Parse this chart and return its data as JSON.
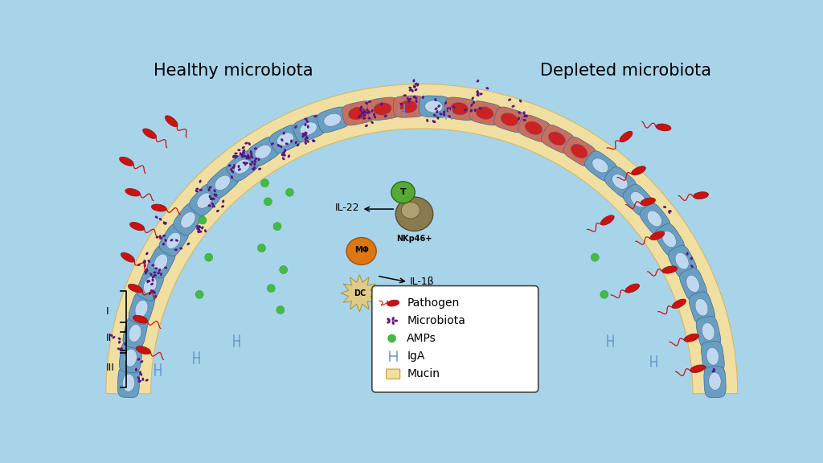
{
  "background_color": "#a8d4ea",
  "title_left": "Healthy microbiota",
  "title_right": "Depleted microbiota",
  "title_fontsize": 15,
  "mucin_color": "#f0dfa0",
  "mucin_edge_color": "#d4b86a",
  "cell_body_color": "#6a9ec0",
  "cell_highlight_color": "#c0d8ee",
  "cell_edge_color": "#3a6a9a",
  "pathogen_color": "#cc1111",
  "pathogen_edge": "#881111",
  "microbiota_color": "#5a1580",
  "amps_color": "#44bb44",
  "iga_color": "#6699cc",
  "label_I": "I",
  "label_II": "II",
  "label_III": "III",
  "legend_items": [
    "Pathogen",
    "Microbiota",
    "AMPs",
    "IgA",
    "Mucin"
  ],
  "legend_colors": [
    "#cc1111",
    "#5a1580",
    "#44bb44",
    "#6699cc",
    "#f0dfa0"
  ],
  "cell_infected_body": "#c87060",
  "cell_infected_nuc": "#cc2222",
  "nkp46_body": "#8a7a50",
  "nkp46_nuc": "#b0a070",
  "t_cell_color": "#55aa33",
  "macro_color": "#dd7711",
  "dc_color": "#e0cc88"
}
